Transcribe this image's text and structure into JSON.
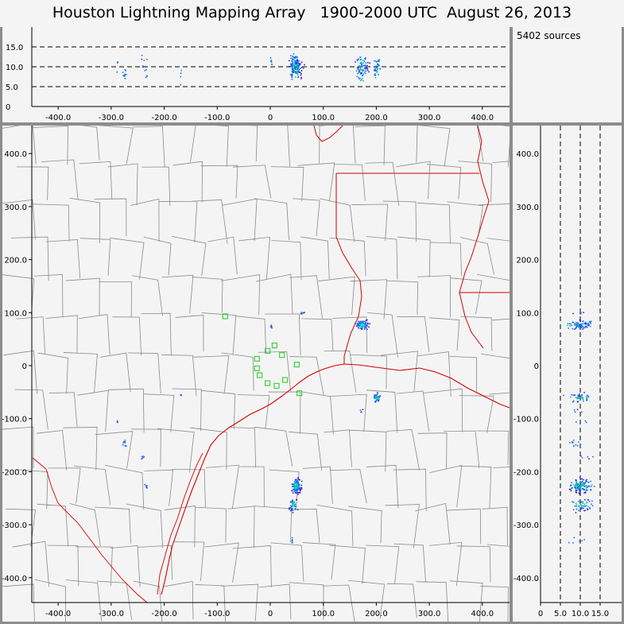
{
  "title": "Houston Lightning Mapping Array   1900-2000 UTC  August 26, 2013",
  "source_count": "5402 sources",
  "colors": {
    "background": "#f4f4f4",
    "frame": "#8c8c8c",
    "county_lines": "#888888",
    "coast_and_state_lines": "#d40000",
    "stations": "#33cc33",
    "density_low": "#3a00c8",
    "density_mid": "#0060ff",
    "density_high": "#00c8a0"
  },
  "plan_view": {
    "x_ticks": [
      "-400.0",
      "-300.0",
      "-200.0",
      "-100.0",
      "0",
      "100.0",
      "200.0",
      "300.0",
      "400.0"
    ],
    "y_ticks": [
      "400.0",
      "300.0",
      "200.0",
      "100.0",
      "0",
      "-100.0",
      "-200.0",
      "-300.0",
      "-400.0"
    ]
  },
  "altitude_vs_ew": {
    "y_ticks": [
      "15.0",
      "10.0",
      "5.0",
      "0"
    ],
    "x_ticks": [
      "-400.0",
      "-300.0",
      "-200.0",
      "-100.0",
      "0",
      "100.0",
      "200.0",
      "300.0",
      "400.0"
    ]
  },
  "altitude_vs_ns": {
    "x_ticks": [
      "0",
      "5.0",
      "10.0",
      "15.0"
    ],
    "y_ticks": [
      "400.0",
      "300.0",
      "200.0",
      "100.0",
      "0",
      "-100.0",
      "-200.0",
      "-300.0",
      "-400.0"
    ]
  },
  "stations": [
    [
      -25,
      13
    ],
    [
      -5,
      28
    ],
    [
      8,
      38
    ],
    [
      22,
      20
    ],
    [
      50,
      2
    ],
    [
      -20,
      -18
    ],
    [
      -5,
      -33
    ],
    [
      12,
      -38
    ],
    [
      28,
      -27
    ],
    [
      -25,
      -5
    ],
    [
      55,
      -52
    ],
    [
      -85,
      93
    ]
  ],
  "source_clusters": [
    {
      "x": 48,
      "y": -226,
      "alt": 10,
      "n": 120,
      "sx": 5,
      "sy": 8
    },
    {
      "x": 42,
      "y": -262,
      "alt": 10,
      "n": 50,
      "sx": 4,
      "sy": 8
    },
    {
      "x": 172,
      "y": 78,
      "alt": 10,
      "n": 80,
      "sx": 7,
      "sy": 5
    },
    {
      "x": 200,
      "y": -60,
      "alt": 10,
      "n": 40,
      "sx": 4,
      "sy": 5
    },
    {
      "x": 60,
      "y": 100,
      "alt": 11,
      "n": 6,
      "sx": 2,
      "sy": 2
    },
    {
      "x": 0,
      "y": 75,
      "alt": 10,
      "n": 6,
      "sx": 2,
      "sy": 2
    },
    {
      "x": -275,
      "y": -145,
      "alt": 8,
      "n": 10,
      "sx": 3,
      "sy": 5
    },
    {
      "x": -240,
      "y": -170,
      "alt": 12,
      "n": 5,
      "sx": 2,
      "sy": 4
    },
    {
      "x": -235,
      "y": -225,
      "alt": 9,
      "n": 5,
      "sx": 2,
      "sy": 3
    },
    {
      "x": -170,
      "y": -55,
      "alt": 7,
      "n": 4,
      "sx": 1,
      "sy": 3
    },
    {
      "x": -290,
      "y": -105,
      "alt": 10,
      "n": 3,
      "sx": 1,
      "sy": 2
    },
    {
      "x": 40,
      "y": -330,
      "alt": 9,
      "n": 6,
      "sx": 1,
      "sy": 5
    },
    {
      "x": 170,
      "y": -85,
      "alt": 9,
      "n": 4,
      "sx": 2,
      "sy": 3
    }
  ]
}
